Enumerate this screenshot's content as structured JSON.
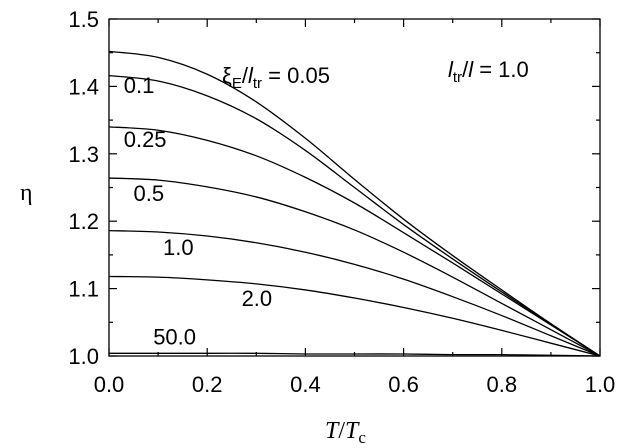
{
  "chart_data": {
    "type": "line",
    "xlabel": {
      "main": "T",
      "slash": "/",
      "main2": "T",
      "sub": "c"
    },
    "ylabel": "η",
    "xlim": [
      0.0,
      1.0
    ],
    "ylim": [
      1.0,
      1.5
    ],
    "xticks": [
      "0.0",
      "0.2",
      "0.4",
      "0.6",
      "0.8",
      "1.0"
    ],
    "yticks": [
      "1.0",
      "1.1",
      "1.2",
      "1.3",
      "1.4",
      "1.5"
    ],
    "grid": false,
    "legend": "none",
    "annotations": {
      "param_label": {
        "xi": "ξ",
        "xi_sub": "E",
        "slash": "/",
        "l": "l",
        "l_sub": "tr",
        "eq": " = 0.05"
      },
      "ratio_label": {
        "l": "l",
        "l_sub": "tr",
        "slash": "/",
        "l2": "l",
        "eq": " = 1.0"
      }
    },
    "series": [
      {
        "label": "0.05",
        "x": [
          0.0,
          0.1,
          0.2,
          0.3,
          0.4,
          0.5,
          0.6,
          0.7,
          0.8,
          0.9,
          1.0
        ],
        "y": [
          1.452,
          1.443,
          1.418,
          1.377,
          1.323,
          1.262,
          1.203,
          1.149,
          1.098,
          1.048,
          1.0
        ]
      },
      {
        "label": "0.1",
        "x": [
          0.0,
          0.1,
          0.2,
          0.3,
          0.4,
          0.5,
          0.6,
          0.7,
          0.8,
          0.9,
          1.0
        ],
        "y": [
          1.416,
          1.408,
          1.386,
          1.352,
          1.305,
          1.25,
          1.195,
          1.144,
          1.095,
          1.047,
          1.0
        ]
      },
      {
        "label": "0.25",
        "x": [
          0.0,
          0.1,
          0.2,
          0.3,
          0.4,
          0.5,
          0.6,
          0.7,
          0.8,
          0.9,
          1.0
        ],
        "y": [
          1.34,
          1.335,
          1.32,
          1.297,
          1.265,
          1.227,
          1.183,
          1.138,
          1.092,
          1.046,
          1.0
        ]
      },
      {
        "label": "0.5",
        "x": [
          0.0,
          0.1,
          0.2,
          0.3,
          0.4,
          0.5,
          0.6,
          0.7,
          0.8,
          0.9,
          1.0
        ],
        "y": [
          1.264,
          1.261,
          1.251,
          1.236,
          1.214,
          1.187,
          1.154,
          1.117,
          1.078,
          1.039,
          1.0
        ]
      },
      {
        "label": "1.0",
        "x": [
          0.0,
          0.1,
          0.2,
          0.3,
          0.4,
          0.5,
          0.6,
          0.7,
          0.8,
          0.9,
          1.0
        ],
        "y": [
          1.186,
          1.184,
          1.178,
          1.168,
          1.154,
          1.136,
          1.114,
          1.088,
          1.06,
          1.03,
          1.0
        ]
      },
      {
        "label": "2.0",
        "x": [
          0.0,
          0.1,
          0.2,
          0.3,
          0.4,
          0.5,
          0.6,
          0.7,
          0.8,
          0.9,
          1.0
        ],
        "y": [
          1.118,
          1.117,
          1.113,
          1.107,
          1.098,
          1.086,
          1.072,
          1.056,
          1.038,
          1.019,
          1.0
        ]
      },
      {
        "label": "50.0",
        "x": [
          0.0,
          0.1,
          0.2,
          0.3,
          0.4,
          0.5,
          0.6,
          0.7,
          0.8,
          0.9,
          1.0
        ],
        "y": [
          1.004,
          1.004,
          1.004,
          1.004,
          1.003,
          1.003,
          1.003,
          1.002,
          1.002,
          1.001,
          1.0
        ]
      }
    ],
    "curve_labels": [
      {
        "text": "0.1",
        "x": 0.03,
        "y": 1.39
      },
      {
        "text": "0.25",
        "x": 0.03,
        "y": 1.31
      },
      {
        "text": "0.5",
        "x": 0.05,
        "y": 1.23
      },
      {
        "text": "1.0",
        "x": 0.11,
        "y": 1.15
      },
      {
        "text": "2.0",
        "x": 0.27,
        "y": 1.074
      },
      {
        "text": "50.0",
        "x": 0.09,
        "y": 1.017
      }
    ]
  }
}
